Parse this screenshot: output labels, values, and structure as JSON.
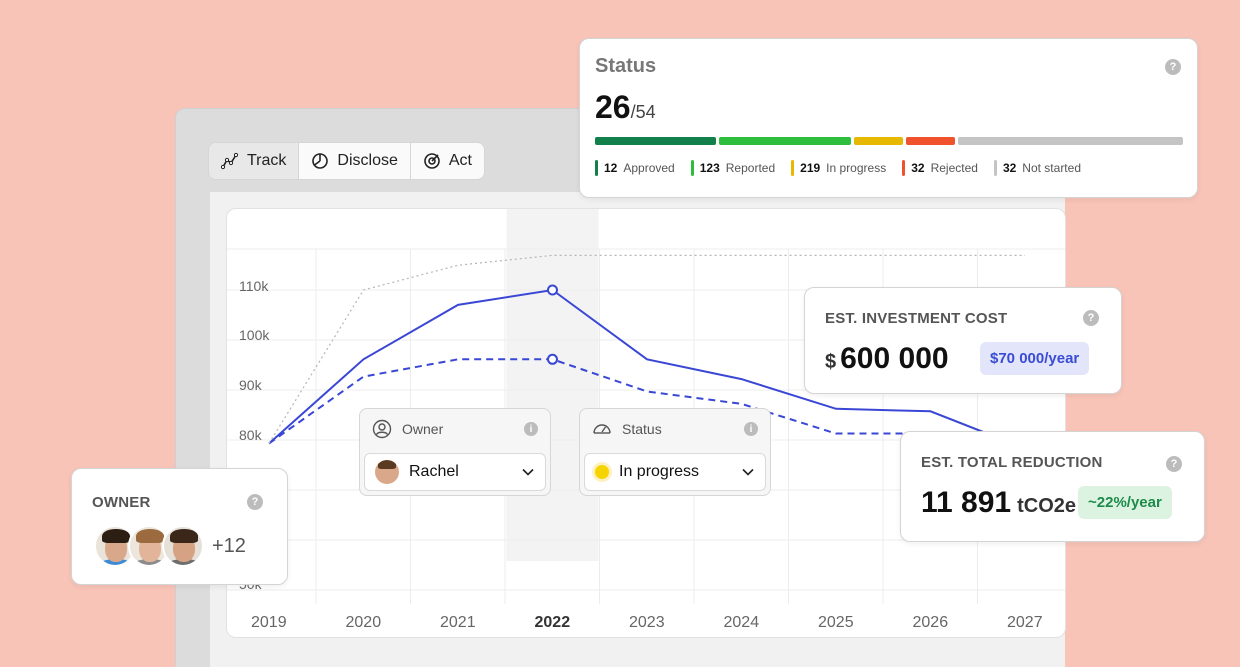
{
  "tabs": [
    {
      "label": "Track",
      "icon": "trend-line-icon"
    },
    {
      "label": "Disclose",
      "icon": "pie-chart-icon"
    },
    {
      "label": "Act",
      "icon": "target-icon"
    }
  ],
  "chart_data": {
    "type": "line",
    "x": [
      "2019",
      "2020",
      "2021",
      "2022",
      "2023",
      "2024",
      "2025",
      "2026",
      "2027"
    ],
    "highlighted_x": "2022",
    "y_ticks": [
      "110k",
      "100k",
      "90k",
      "80k",
      "50k"
    ],
    "grid": true,
    "series": [
      {
        "style": "solid",
        "color": "#3a47d5",
        "values": [
          82,
          99,
          110,
          113,
          99,
          95,
          89,
          88.5,
          81
        ]
      },
      {
        "style": "dashed",
        "color": "#3a47d5",
        "values": [
          82,
          95.5,
          99,
          99,
          92.5,
          90,
          84,
          84,
          79
        ]
      },
      {
        "style": "dotted",
        "color": "#b5b5b5",
        "values": [
          82,
          113,
          118,
          120,
          120,
          120,
          120,
          120,
          120
        ]
      }
    ]
  },
  "status": {
    "title": "Status",
    "count": "26",
    "total": "/54",
    "help": "?",
    "segments": [
      {
        "count": "12",
        "label": "Approved",
        "color": "#12804a",
        "fraction": 0.21
      },
      {
        "count": "123",
        "label": "Reported",
        "color": "#2dbe3d",
        "fraction": 0.23
      },
      {
        "count": "219",
        "label": "In progress",
        "color": "#e6b800",
        "fraction": 0.085
      },
      {
        "count": "32",
        "label": "Rejected",
        "color": "#f0522d",
        "fraction": 0.085
      },
      {
        "count": "32",
        "label": "Not started",
        "color": "#c4c4c4",
        "fraction": 0.39
      }
    ]
  },
  "investment": {
    "title": "EST. INVESTMENT COST",
    "currency": "$",
    "value": "600 000",
    "pill": "$70 000/year",
    "help": "?"
  },
  "reduction": {
    "title": "EST. TOTAL REDUCTION",
    "value": "11 891",
    "unit": "tCO2e",
    "pill": "~22%/year",
    "help": "?"
  },
  "owner_card": {
    "title": "OWNER",
    "more": "+12",
    "help": "?"
  },
  "owner_filter": {
    "label": "Owner",
    "help": "i",
    "value": "Rachel"
  },
  "status_filter": {
    "label": "Status",
    "help": "i",
    "value": "In progress"
  }
}
